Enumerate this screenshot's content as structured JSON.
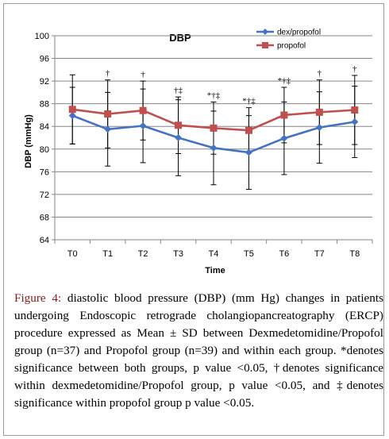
{
  "chart_data": {
    "type": "line",
    "title": "DBP",
    "xlabel": "Time",
    "ylabel": "DBP (mmHg)",
    "categories": [
      "T0",
      "T1",
      "T2",
      "T3",
      "T4",
      "T5",
      "T6",
      "T7",
      "T8"
    ],
    "ylim": [
      64,
      100
    ],
    "yticks": [
      64,
      68,
      72,
      76,
      80,
      84,
      88,
      92,
      96,
      100
    ],
    "grid": "horizontal",
    "legend_position": "top-right",
    "series": [
      {
        "name": "dex/propofol",
        "color": "#4472c4",
        "marker": "diamond",
        "values": [
          85.9,
          83.5,
          84.1,
          82.0,
          80.2,
          79.4,
          81.9,
          83.8,
          84.8
        ],
        "sd": [
          5.0,
          6.5,
          6.5,
          6.7,
          6.5,
          6.5,
          6.4,
          6.3,
          6.3
        ]
      },
      {
        "name": "propofol",
        "color": "#c0504d",
        "marker": "square",
        "values": [
          87.0,
          86.2,
          86.8,
          84.2,
          83.7,
          83.3,
          86.0,
          86.5,
          86.9
        ],
        "sd": [
          6.1,
          6.0,
          5.2,
          5.0,
          4.6,
          4.0,
          4.9,
          5.7,
          6.1
        ]
      }
    ],
    "annotations": [
      "",
      "†",
      "†",
      "†‡",
      "*†‡",
      "*†‡",
      "*†‡",
      "†",
      "†"
    ]
  },
  "caption": {
    "label": "Figure 4:",
    "text": " diastolic blood pressure (DBP) (mm Hg) changes in patients undergoing Endoscopic retrograde cholangiopancreatography (ERCP) procedure expressed as Mean ± SD between Dexmedetomidine/Propofol group (n=37) and Propofol group (n=39) and within each group. *denotes significance between both groups, p value <0.05, †denotes significance within dexmedetomidine/Propofol group, p value <0.05, and ‡denotes significance within propofol group p value <0.05."
  }
}
